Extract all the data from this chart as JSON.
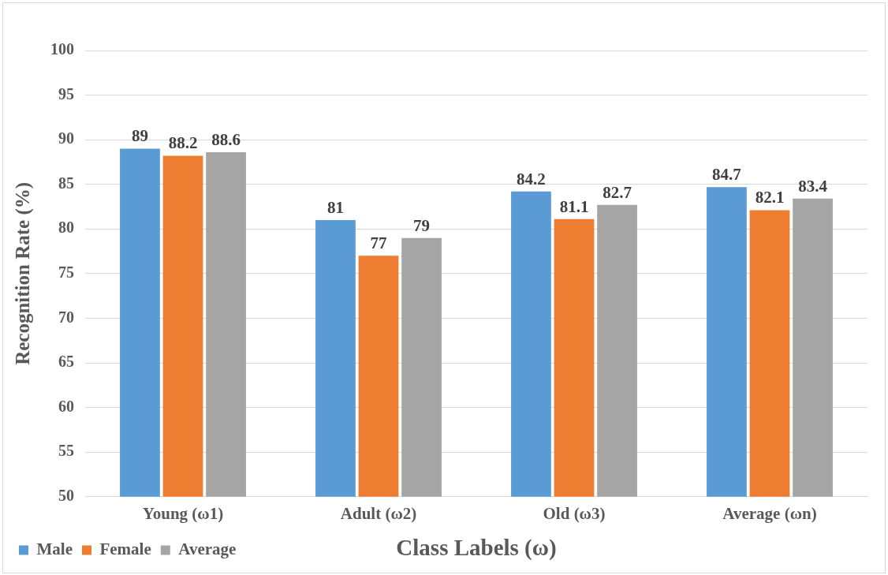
{
  "chart_data": {
    "type": "bar",
    "xlabel": "Class Labels (ω)",
    "ylabel": "Recognition Rate (%)",
    "categories": [
      "Young (ω1)",
      "Adult (ω2)",
      "Old (ω3)",
      "Average (ωn)"
    ],
    "series": [
      {
        "name": "Male",
        "color": "#5b9bd5",
        "values": [
          89,
          81,
          84.2,
          84.7
        ]
      },
      {
        "name": "Female",
        "color": "#ed7d31",
        "values": [
          88.2,
          77,
          81.1,
          82.1
        ]
      },
      {
        "name": "Average",
        "color": "#a5a5a5",
        "values": [
          88.6,
          79,
          82.7,
          83.4
        ]
      }
    ],
    "ylim": [
      50,
      100
    ],
    "yticks": [
      50,
      55,
      60,
      65,
      70,
      75,
      80,
      85,
      90,
      95,
      100
    ],
    "grid": "y",
    "legend": "bottom left",
    "data_labels": true
  }
}
